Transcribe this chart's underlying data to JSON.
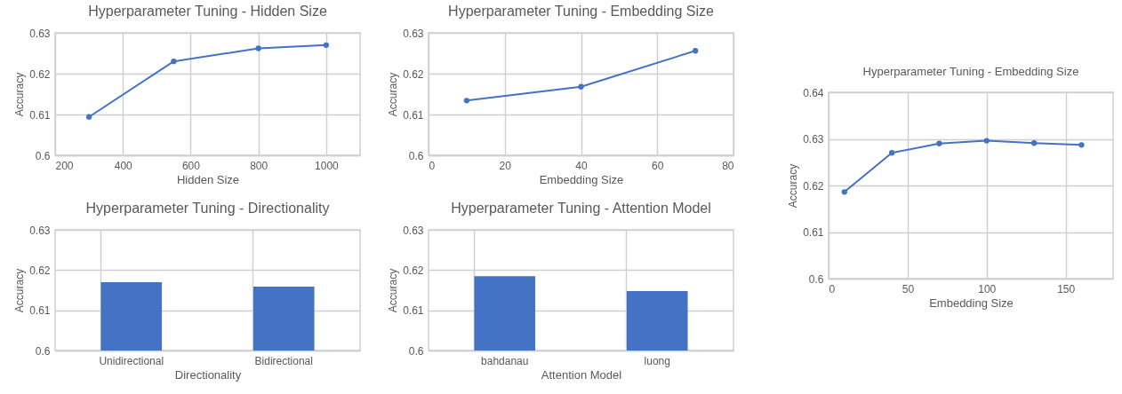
{
  "chart_data": [
    {
      "type": "line",
      "title": "Hyperparameter Tuning - Hidden Size",
      "xlabel": "Hidden Size",
      "ylabel": "Accuracy",
      "x": [
        300,
        550,
        800,
        1000
      ],
      "values": [
        0.6094,
        0.623,
        0.6262,
        0.627
      ],
      "color": "#4472c4",
      "marker": "circle",
      "xlim": [
        200,
        1100
      ],
      "xticks": [
        200,
        400,
        600,
        800,
        1000
      ],
      "ylim": [
        0.6,
        0.63
      ],
      "yticks": [
        0.6,
        0.61,
        0.62,
        0.63
      ],
      "grid": true
    },
    {
      "type": "line",
      "title": "Hyperparameter Tuning - Embedding Size",
      "xlabel": "Embedding Size",
      "ylabel": "Accuracy",
      "x": [
        10,
        40,
        70
      ],
      "values": [
        0.6134,
        0.6168,
        0.6256
      ],
      "color": "#4472c4",
      "marker": "circle",
      "xlim": [
        0,
        80
      ],
      "xticks": [
        0,
        20,
        40,
        60,
        80
      ],
      "ylim": [
        0.6,
        0.63
      ],
      "yticks": [
        0.6,
        0.61,
        0.62,
        0.63
      ],
      "grid": true
    },
    {
      "type": "line",
      "title": "Hyperparameter Tuning - Embedding Size",
      "xlabel": "Embedding Size",
      "ylabel": "Accuracy",
      "x": [
        10,
        40,
        70,
        100,
        130,
        160
      ],
      "values": [
        0.6186,
        0.627,
        0.629,
        0.6296,
        0.6291,
        0.6287
      ],
      "color": "#4472c4",
      "marker": "circle",
      "xlim": [
        0,
        180
      ],
      "xticks": [
        0,
        50,
        100,
        150
      ],
      "ylim": [
        0.6,
        0.64
      ],
      "yticks": [
        0.6,
        0.61,
        0.62,
        0.63,
        0.64
      ],
      "grid": true
    },
    {
      "type": "bar",
      "title": "Hyperparameter Tuning - Directionality",
      "xlabel": "Directionality",
      "ylabel": "Accuracy",
      "categories": [
        "Unidirectional",
        "Bidirectional"
      ],
      "values": [
        0.617,
        0.6159
      ],
      "color": "#4472c4",
      "ylim": [
        0.6,
        0.63
      ],
      "yticks": [
        0.6,
        0.61,
        0.62,
        0.63
      ],
      "grid": true
    },
    {
      "type": "bar",
      "title": "Hyperparameter Tuning - Attention Model",
      "xlabel": "Attention Model",
      "ylabel": "Accuracy",
      "categories": [
        "bahdanau",
        "luong"
      ],
      "values": [
        0.6185,
        0.6148
      ],
      "color": "#4472c4",
      "ylim": [
        0.6,
        0.63
      ],
      "yticks": [
        0.6,
        0.61,
        0.62,
        0.63
      ],
      "grid": true
    }
  ]
}
